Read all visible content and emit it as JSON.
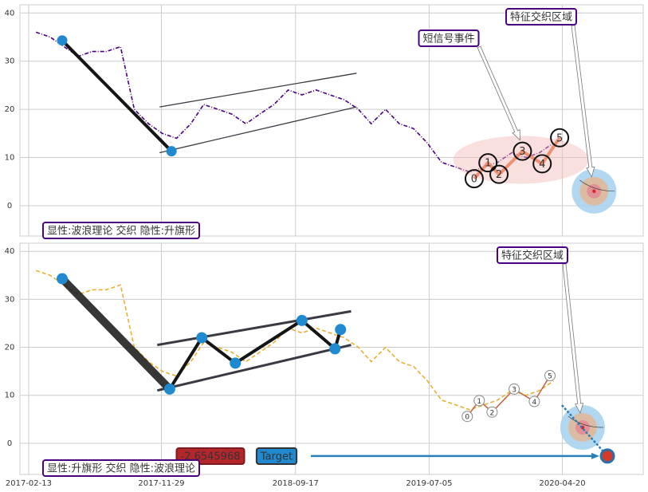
{
  "chart_data": [
    {
      "type": "line",
      "xlim": [
        "2017-01-25",
        "2020-10-13"
      ],
      "ylim": [
        -6.3,
        41.7
      ],
      "yticks": [
        0,
        10,
        20,
        30,
        40
      ],
      "grid": true,
      "series": [
        {
          "color": "#4b0082",
          "x": [
            "2017-03-01",
            "2017-04-01",
            "2017-05-01",
            "2017-06-01",
            "2017-07-01",
            "2017-08-01",
            "2017-09-01",
            "2017-10-01",
            "2017-11-01",
            "2017-12-01",
            "2018-01-01",
            "2018-02-01",
            "2018-03-01",
            "2018-04-01",
            "2018-05-01",
            "2018-06-01",
            "2018-07-01",
            "2018-08-01",
            "2018-09-01",
            "2018-10-01",
            "2018-11-01",
            "2018-12-01",
            "2019-01-01",
            "2019-02-01",
            "2019-03-01",
            "2019-04-01",
            "2019-05-01",
            "2019-06-01",
            "2019-07-01",
            "2019-08-01",
            "2019-09-01",
            "2019-10-01",
            "2019-11-01",
            "2019-12-01",
            "2020-01-01",
            "2020-02-01",
            "2020-03-01",
            "2020-04-01"
          ],
          "values": [
            36,
            35,
            33,
            31,
            32,
            32,
            33,
            20,
            17,
            15,
            14,
            17,
            21,
            20,
            19,
            17,
            19,
            21,
            24,
            23,
            24,
            23,
            22,
            20,
            17,
            20,
            17,
            16,
            13,
            9,
            8,
            7,
            8,
            9,
            11,
            10,
            11,
            13
          ]
        }
      ],
      "waves": {
        "x": [
          "2017-04-27",
          "2017-12-21"
        ],
        "values": [
          34.3,
          11.3
        ]
      },
      "channel": [
        {
          "x": [
            "2017-11-25",
            "2019-01-28"
          ],
          "values": [
            20.5,
            27.5
          ]
        },
        {
          "x": [
            "2017-11-25",
            "2019-01-28"
          ],
          "values": [
            11,
            20.5
          ]
        }
      ],
      "pattern": {
        "labels": [
          "0",
          "1",
          "2",
          "3",
          "4",
          "5"
        ],
        "x": [
          "2019-10-11",
          "2019-11-10",
          "2019-12-04",
          "2020-01-24",
          "2020-03-07",
          "2020-04-14"
        ],
        "values": [
          5.6,
          8.9,
          6.5,
          11.3,
          8.7,
          14.1
        ]
      },
      "zone": {
        "x": "2020-06-28",
        "value": 3
      },
      "annotations": [
        "特征交织区域",
        "短信号事件"
      ],
      "caption": "显性:波浪理论 交织 隐性:升旗形"
    },
    {
      "type": "line",
      "xlim": [
        "2017-01-25",
        "2020-10-13"
      ],
      "xticks": [
        "2017-02-13",
        "2017-11-29",
        "2018-09-17",
        "2019-07-05",
        "2020-04-20"
      ],
      "ylim": [
        -6.5,
        41.7
      ],
      "yticks": [
        0,
        10,
        20,
        30,
        40
      ],
      "grid": true,
      "series": [
        {
          "color": "#e8b030",
          "x": [
            "2017-03-01",
            "2017-04-01",
            "2017-05-01",
            "2017-06-01",
            "2017-07-01",
            "2017-08-01",
            "2017-09-01",
            "2017-10-01",
            "2017-11-01",
            "2017-12-01",
            "2018-01-01",
            "2018-02-01",
            "2018-03-01",
            "2018-04-01",
            "2018-05-01",
            "2018-06-01",
            "2018-07-01",
            "2018-08-01",
            "2018-09-01",
            "2018-10-01",
            "2018-11-01",
            "2018-12-01",
            "2019-01-01",
            "2019-02-01",
            "2019-03-01",
            "2019-04-01",
            "2019-05-01",
            "2019-06-01",
            "2019-07-01",
            "2019-08-01",
            "2019-09-01",
            "2019-10-01",
            "2019-11-01",
            "2019-12-01",
            "2020-01-01",
            "2020-02-01",
            "2020-03-01",
            "2020-04-01"
          ],
          "values": [
            36,
            35,
            33,
            31,
            32,
            32,
            33,
            20,
            17,
            15,
            14,
            17,
            21,
            20,
            19,
            17,
            19,
            21,
            24,
            23,
            24,
            23,
            22,
            20,
            17,
            20,
            17,
            16,
            13,
            9,
            8,
            7,
            8,
            9,
            11,
            10,
            11,
            13
          ]
        }
      ],
      "waves": {
        "x": [
          "2017-04-27",
          "2017-12-17",
          "2018-02-25",
          "2018-05-09",
          "2018-10-01",
          "2018-12-12",
          "2018-12-24"
        ],
        "values": [
          34.3,
          11.3,
          22,
          16.7,
          25.6,
          19.7,
          23.7
        ]
      },
      "channel": [
        {
          "x": [
            "2017-11-20",
            "2019-01-16"
          ],
          "values": [
            20.5,
            27.5
          ]
        },
        {
          "x": [
            "2017-11-20",
            "2019-01-16"
          ],
          "values": [
            11,
            20.5
          ]
        }
      ],
      "pattern": {
        "labels": [
          "0",
          "1",
          "2",
          "3",
          "4",
          "5"
        ],
        "x": [
          "2019-09-26",
          "2019-10-22",
          "2019-11-19",
          "2020-01-06",
          "2020-02-19",
          "2020-03-24"
        ],
        "values": [
          5.6,
          8.9,
          6.5,
          11.3,
          8.7,
          14.1
        ]
      },
      "zone": {
        "x": "2020-06-03",
        "value": 3.3
      },
      "target": {
        "x": "2020-07-27",
        "value": -2.6545968,
        "label": "Target"
      },
      "annotations": [
        "特征交织区域"
      ],
      "caption": "显性:升旗形 交织 隐性:波浪理论"
    }
  ]
}
